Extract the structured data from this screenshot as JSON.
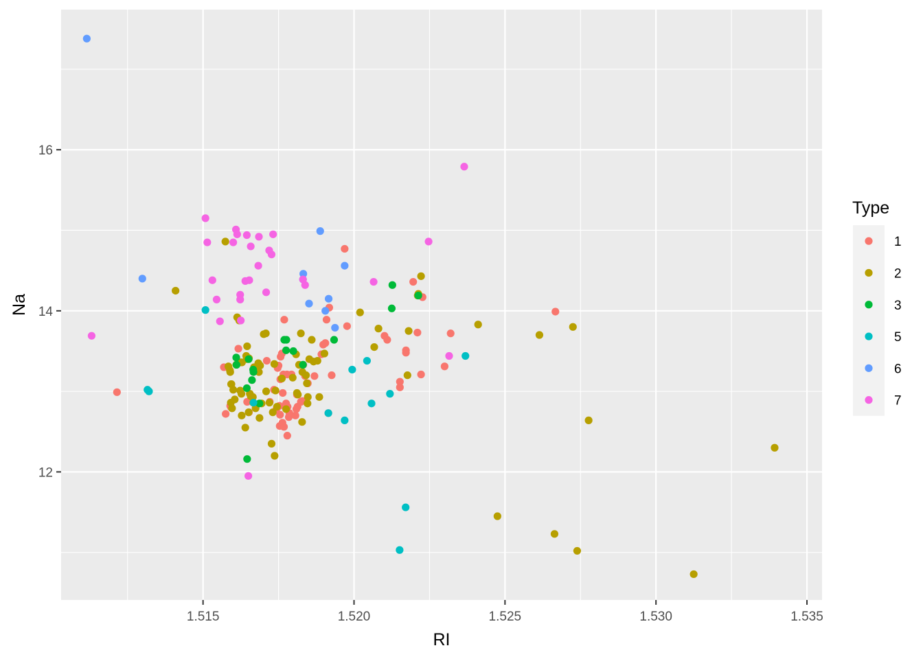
{
  "chart_data": {
    "type": "scatter",
    "xlabel": "RI",
    "ylabel": "Na",
    "xlim": [
      1.5103,
      1.5355
    ],
    "ylim": [
      10.41,
      17.74
    ],
    "x_ticks": [
      1.515,
      1.52,
      1.525,
      1.53,
      1.535
    ],
    "x_tick_labels": [
      "1.515",
      "1.520",
      "1.525",
      "1.530",
      "1.535"
    ],
    "y_ticks": [
      12,
      14,
      16
    ],
    "y_tick_labels": [
      "12",
      "14",
      "16"
    ],
    "grid": true,
    "legend": {
      "title": "Type",
      "position": "right"
    },
    "series": [
      {
        "name": "1",
        "color": "#F8766D",
        "points": [
          [
            1.51215,
            12.99
          ],
          [
            1.51569,
            13.3
          ],
          [
            1.51575,
            12.72
          ],
          [
            1.5159,
            12.82
          ],
          [
            1.51593,
            12.8
          ],
          [
            1.51617,
            13.53
          ],
          [
            1.51646,
            12.87
          ],
          [
            1.51652,
            12.74
          ],
          [
            1.51711,
            13.38
          ],
          [
            1.51721,
            12.87
          ],
          [
            1.51735,
            13.02
          ],
          [
            1.51743,
            12.78
          ],
          [
            1.51747,
            13.29
          ],
          [
            1.5175,
            13.32
          ],
          [
            1.51753,
            12.82
          ],
          [
            1.51754,
            12.57
          ],
          [
            1.51755,
            12.71
          ],
          [
            1.51756,
            13.15
          ],
          [
            1.51757,
            13.43
          ],
          [
            1.51761,
            13.47
          ],
          [
            1.51763,
            12.61
          ],
          [
            1.51764,
            12.98
          ],
          [
            1.51766,
            13.21
          ],
          [
            1.51768,
            12.56
          ],
          [
            1.51769,
            13.89
          ],
          [
            1.51775,
            12.85
          ],
          [
            1.51776,
            12.81
          ],
          [
            1.51778,
            13.21
          ],
          [
            1.51779,
            12.45
          ],
          [
            1.5178,
            12.81
          ],
          [
            1.51784,
            12.68
          ],
          [
            1.51786,
            12.73
          ],
          [
            1.51793,
            13.21
          ],
          [
            1.51806,
            12.7
          ],
          [
            1.51809,
            12.78
          ],
          [
            1.51811,
            12.96
          ],
          [
            1.51813,
            12.81
          ],
          [
            1.51824,
            12.87
          ],
          [
            1.51829,
            12.88
          ],
          [
            1.51832,
            13.33
          ],
          [
            1.51838,
            13.19
          ],
          [
            1.51847,
            13.1
          ],
          [
            1.51869,
            13.19
          ],
          [
            1.51892,
            13.46
          ],
          [
            1.51898,
            13.58
          ],
          [
            1.51905,
            13.6
          ],
          [
            1.51909,
            13.89
          ],
          [
            1.51915,
            12.73
          ],
          [
            1.51918,
            14.04
          ],
          [
            1.51926,
            13.2
          ],
          [
            1.51969,
            14.77
          ],
          [
            1.51977,
            13.81
          ],
          [
            1.52101,
            13.69
          ],
          [
            1.5211,
            13.64
          ],
          [
            1.52152,
            13.05
          ],
          [
            1.52152,
            13.12
          ],
          [
            1.52172,
            13.51
          ],
          [
            1.52172,
            13.48
          ],
          [
            1.52196,
            14.36
          ],
          [
            1.5221,
            13.73
          ],
          [
            1.52222,
            13.21
          ],
          [
            1.52227,
            14.17
          ],
          [
            1.523,
            13.31
          ],
          [
            1.5232,
            13.72
          ],
          [
            1.52667,
            13.99
          ]
        ]
      },
      {
        "name": "2",
        "color": "#B79F00",
        "points": [
          [
            1.51409,
            14.25
          ],
          [
            1.51574,
            14.86
          ],
          [
            1.51584,
            13.31
          ],
          [
            1.51589,
            13.26
          ],
          [
            1.5159,
            13.24
          ],
          [
            1.51592,
            12.86
          ],
          [
            1.51593,
            13.09
          ],
          [
            1.51594,
            13.09
          ],
          [
            1.51596,
            12.79
          ],
          [
            1.516,
            13.02
          ],
          [
            1.51605,
            12.9
          ],
          [
            1.5161,
            13.33
          ],
          [
            1.51613,
            13.92
          ],
          [
            1.5162,
            13.88
          ],
          [
            1.51623,
            13.01
          ],
          [
            1.51625,
            13.36
          ],
          [
            1.51627,
            12.97
          ],
          [
            1.51628,
            12.7
          ],
          [
            1.51629,
            13.36
          ],
          [
            1.5164,
            12.55
          ],
          [
            1.51643,
            13.44
          ],
          [
            1.51645,
            13.4
          ],
          [
            1.51646,
            13.56
          ],
          [
            1.51651,
            12.74
          ],
          [
            1.51652,
            13.41
          ],
          [
            1.51655,
            12.97
          ],
          [
            1.51658,
            12.94
          ],
          [
            1.51665,
            12.93
          ],
          [
            1.51666,
            12.86
          ],
          [
            1.51669,
            13.3
          ],
          [
            1.51674,
            12.79
          ],
          [
            1.51683,
            13.35
          ],
          [
            1.51685,
            13.24
          ],
          [
            1.51687,
            12.67
          ],
          [
            1.51689,
            13.32
          ],
          [
            1.51694,
            12.85
          ],
          [
            1.51701,
            13.71
          ],
          [
            1.51708,
            13.72
          ],
          [
            1.51709,
            13.0
          ],
          [
            1.5172,
            12.86
          ],
          [
            1.51727,
            12.35
          ],
          [
            1.51731,
            12.74
          ],
          [
            1.51736,
            13.34
          ],
          [
            1.51737,
            12.2
          ],
          [
            1.5174,
            13.01
          ],
          [
            1.51745,
            12.81
          ],
          [
            1.51761,
            13.16
          ],
          [
            1.51775,
            12.78
          ],
          [
            1.51797,
            13.17
          ],
          [
            1.51808,
            13.46
          ],
          [
            1.51811,
            12.98
          ],
          [
            1.51814,
            12.96
          ],
          [
            1.51818,
            13.33
          ],
          [
            1.51824,
            13.72
          ],
          [
            1.51828,
            12.62
          ],
          [
            1.51829,
            13.24
          ],
          [
            1.51841,
            13.2
          ],
          [
            1.51844,
            13.1
          ],
          [
            1.51846,
            12.85
          ],
          [
            1.51847,
            12.93
          ],
          [
            1.51852,
            13.4
          ],
          [
            1.5186,
            13.64
          ],
          [
            1.51866,
            13.37
          ],
          [
            1.51879,
            13.38
          ],
          [
            1.51885,
            12.93
          ],
          [
            1.51902,
            13.47
          ],
          [
            1.5202,
            13.98
          ],
          [
            1.52067,
            13.55
          ],
          [
            1.52081,
            13.78
          ],
          [
            1.52177,
            13.2
          ],
          [
            1.52181,
            13.75
          ],
          [
            1.52211,
            14.19
          ],
          [
            1.52213,
            14.21
          ],
          [
            1.52222,
            14.43
          ],
          [
            1.52411,
            13.83
          ],
          [
            1.52475,
            11.45
          ],
          [
            1.52614,
            13.7
          ],
          [
            1.52664,
            11.23
          ],
          [
            1.52725,
            13.8
          ],
          [
            1.52739,
            11.02
          ],
          [
            1.52777,
            12.64
          ],
          [
            1.53125,
            10.73
          ],
          [
            1.53393,
            12.3
          ]
        ]
      },
      {
        "name": "3",
        "color": "#00BA38",
        "points": [
          [
            1.5161,
            13.42
          ],
          [
            1.51611,
            13.33
          ],
          [
            1.51645,
            13.04
          ],
          [
            1.51646,
            12.16
          ],
          [
            1.51651,
            13.4
          ],
          [
            1.51662,
            13.14
          ],
          [
            1.51666,
            13.27
          ],
          [
            1.51667,
            13.24
          ],
          [
            1.51687,
            12.85
          ],
          [
            1.51769,
            13.64
          ],
          [
            1.51775,
            13.51
          ],
          [
            1.51776,
            13.64
          ],
          [
            1.51799,
            13.5
          ],
          [
            1.51831,
            13.33
          ],
          [
            1.51934,
            13.64
          ],
          [
            1.52127,
            14.32
          ],
          [
            1.52125,
            14.03
          ],
          [
            1.52213,
            14.19
          ]
        ]
      },
      {
        "name": "5",
        "color": "#00BFC4",
        "points": [
          [
            1.51316,
            13.02
          ],
          [
            1.51321,
            13.0
          ],
          [
            1.51508,
            14.01
          ],
          [
            1.51667,
            12.86
          ],
          [
            1.51915,
            12.73
          ],
          [
            1.51969,
            12.64
          ],
          [
            1.51994,
            13.27
          ],
          [
            1.52043,
            13.38
          ],
          [
            1.52058,
            12.85
          ],
          [
            1.52119,
            12.97
          ],
          [
            1.52151,
            11.03
          ],
          [
            1.52171,
            11.56
          ],
          [
            1.52369,
            13.44
          ]
        ]
      },
      {
        "name": "6",
        "color": "#619CFF",
        "points": [
          [
            1.51115,
            17.38
          ],
          [
            1.51299,
            14.4
          ],
          [
            1.51831,
            14.39
          ],
          [
            1.51832,
            14.46
          ],
          [
            1.51851,
            14.09
          ],
          [
            1.51888,
            14.99
          ],
          [
            1.51905,
            14.0
          ],
          [
            1.51916,
            14.15
          ],
          [
            1.51937,
            13.79
          ],
          [
            1.51969,
            14.56
          ]
        ]
      },
      {
        "name": "7",
        "color": "#F564E3",
        "points": [
          [
            1.51131,
            13.69
          ],
          [
            1.51508,
            15.15
          ],
          [
            1.51514,
            14.85
          ],
          [
            1.51531,
            14.38
          ],
          [
            1.51545,
            14.14
          ],
          [
            1.51556,
            13.87
          ],
          [
            1.516,
            14.85
          ],
          [
            1.51609,
            15.01
          ],
          [
            1.51613,
            14.95
          ],
          [
            1.51623,
            14.2
          ],
          [
            1.51623,
            14.14
          ],
          [
            1.51625,
            13.88
          ],
          [
            1.5164,
            14.37
          ],
          [
            1.51645,
            14.94
          ],
          [
            1.51653,
            14.38
          ],
          [
            1.5165,
            11.95
          ],
          [
            1.51658,
            14.8
          ],
          [
            1.51683,
            14.56
          ],
          [
            1.51685,
            14.92
          ],
          [
            1.51709,
            14.23
          ],
          [
            1.51719,
            14.75
          ],
          [
            1.51727,
            14.7
          ],
          [
            1.51732,
            14.95
          ],
          [
            1.51831,
            14.39
          ],
          [
            1.51838,
            14.32
          ],
          [
            1.52065,
            14.36
          ],
          [
            1.52247,
            14.86
          ],
          [
            1.52315,
            13.44
          ],
          [
            1.52365,
            15.79
          ]
        ]
      }
    ]
  }
}
